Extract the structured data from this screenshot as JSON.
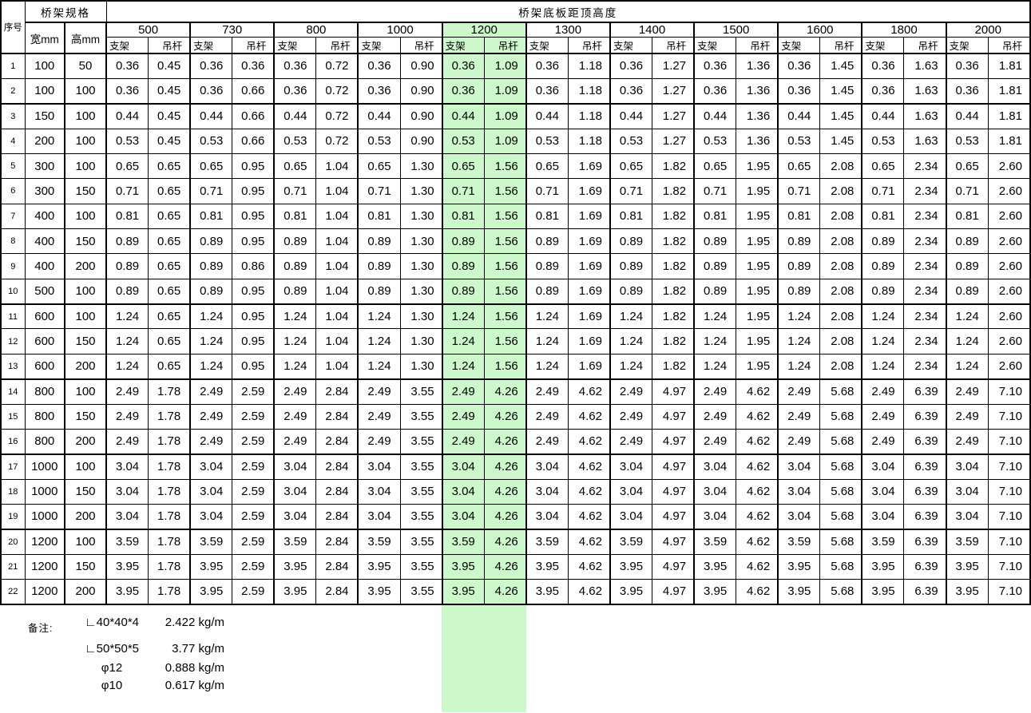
{
  "table": {
    "corner_header": "序号",
    "spec_header": "桥架规格",
    "width_header": "宽mm",
    "height_header": "高mm",
    "top_header": "桥架底板距顶高度",
    "group_labels": [
      "500",
      "730",
      "800",
      "1000",
      "1200",
      "1300",
      "1400",
      "1500",
      "1600",
      "1800",
      "2000"
    ],
    "sub_headers": {
      "bracket": "支架",
      "hanger": "吊杆"
    },
    "highlighted_group": "1200",
    "highlight_color": "#ccf8cc",
    "thick_after_rows": [
      2,
      10,
      13,
      16,
      19
    ],
    "rows": [
      {
        "no": "1",
        "w": "100",
        "h": "50",
        "v": [
          "0.36",
          "0.45",
          "0.36",
          "0.36",
          "0.36",
          "0.72",
          "0.36",
          "0.90",
          "0.36",
          "1.09",
          "0.36",
          "1.18",
          "0.36",
          "1.27",
          "0.36",
          "1.36",
          "0.36",
          "1.45",
          "0.36",
          "1.63",
          "0.36",
          "1.81"
        ]
      },
      {
        "no": "2",
        "w": "100",
        "h": "100",
        "v": [
          "0.36",
          "0.45",
          "0.36",
          "0.66",
          "0.36",
          "0.72",
          "0.36",
          "0.90",
          "0.36",
          "1.09",
          "0.36",
          "1.18",
          "0.36",
          "1.27",
          "0.36",
          "1.36",
          "0.36",
          "1.45",
          "0.36",
          "1.63",
          "0.36",
          "1.81"
        ]
      },
      {
        "no": "3",
        "w": "150",
        "h": "100",
        "v": [
          "0.44",
          "0.45",
          "0.44",
          "0.66",
          "0.44",
          "0.72",
          "0.44",
          "0.90",
          "0.44",
          "1.09",
          "0.44",
          "1.18",
          "0.44",
          "1.27",
          "0.44",
          "1.36",
          "0.44",
          "1.45",
          "0.44",
          "1.63",
          "0.44",
          "1.81"
        ]
      },
      {
        "no": "4",
        "w": "200",
        "h": "100",
        "v": [
          "0.53",
          "0.45",
          "0.53",
          "0.66",
          "0.53",
          "0.72",
          "0.53",
          "0.90",
          "0.53",
          "1.09",
          "0.53",
          "1.18",
          "0.53",
          "1.27",
          "0.53",
          "1.36",
          "0.53",
          "1.45",
          "0.53",
          "1.63",
          "0.53",
          "1.81"
        ]
      },
      {
        "no": "5",
        "w": "300",
        "h": "100",
        "v": [
          "0.65",
          "0.65",
          "0.65",
          "0.95",
          "0.65",
          "1.04",
          "0.65",
          "1.30",
          "0.65",
          "1.56",
          "0.65",
          "1.69",
          "0.65",
          "1.82",
          "0.65",
          "1.95",
          "0.65",
          "2.08",
          "0.65",
          "2.34",
          "0.65",
          "2.60"
        ]
      },
      {
        "no": "6",
        "w": "300",
        "h": "150",
        "v": [
          "0.71",
          "0.65",
          "0.71",
          "0.95",
          "0.71",
          "1.04",
          "0.71",
          "1.30",
          "0.71",
          "1.56",
          "0.71",
          "1.69",
          "0.71",
          "1.82",
          "0.71",
          "1.95",
          "0.71",
          "2.08",
          "0.71",
          "2.34",
          "0.71",
          "2.60"
        ]
      },
      {
        "no": "7",
        "w": "400",
        "h": "100",
        "v": [
          "0.81",
          "0.65",
          "0.81",
          "0.95",
          "0.81",
          "1.04",
          "0.81",
          "1.30",
          "0.81",
          "1.56",
          "0.81",
          "1.69",
          "0.81",
          "1.82",
          "0.81",
          "1.95",
          "0.81",
          "2.08",
          "0.81",
          "2.34",
          "0.81",
          "2.60"
        ]
      },
      {
        "no": "8",
        "w": "400",
        "h": "150",
        "v": [
          "0.89",
          "0.65",
          "0.89",
          "0.95",
          "0.89",
          "1.04",
          "0.89",
          "1.30",
          "0.89",
          "1.56",
          "0.89",
          "1.69",
          "0.89",
          "1.82",
          "0.89",
          "1.95",
          "0.89",
          "2.08",
          "0.89",
          "2.34",
          "0.89",
          "2.60"
        ]
      },
      {
        "no": "9",
        "w": "400",
        "h": "200",
        "v": [
          "0.89",
          "0.65",
          "0.89",
          "0.86",
          "0.89",
          "1.04",
          "0.89",
          "1.30",
          "0.89",
          "1.56",
          "0.89",
          "1.69",
          "0.89",
          "1.82",
          "0.89",
          "1.95",
          "0.89",
          "2.08",
          "0.89",
          "2.34",
          "0.89",
          "2.60"
        ]
      },
      {
        "no": "10",
        "w": "500",
        "h": "100",
        "v": [
          "0.89",
          "0.65",
          "0.89",
          "0.95",
          "0.89",
          "1.04",
          "0.89",
          "1.30",
          "0.89",
          "1.56",
          "0.89",
          "1.69",
          "0.89",
          "1.82",
          "0.89",
          "1.95",
          "0.89",
          "2.08",
          "0.89",
          "2.34",
          "0.89",
          "2.60"
        ]
      },
      {
        "no": "11",
        "w": "600",
        "h": "100",
        "v": [
          "1.24",
          "0.65",
          "1.24",
          "0.95",
          "1.24",
          "1.04",
          "1.24",
          "1.30",
          "1.24",
          "1.56",
          "1.24",
          "1.69",
          "1.24",
          "1.82",
          "1.24",
          "1.95",
          "1.24",
          "2.08",
          "1.24",
          "2.34",
          "1.24",
          "2.60"
        ]
      },
      {
        "no": "12",
        "w": "600",
        "h": "150",
        "v": [
          "1.24",
          "0.65",
          "1.24",
          "0.95",
          "1.24",
          "1.04",
          "1.24",
          "1.30",
          "1.24",
          "1.56",
          "1.24",
          "1.69",
          "1.24",
          "1.82",
          "1.24",
          "1.95",
          "1.24",
          "2.08",
          "1.24",
          "2.34",
          "1.24",
          "2.60"
        ]
      },
      {
        "no": "13",
        "w": "600",
        "h": "200",
        "v": [
          "1.24",
          "0.65",
          "1.24",
          "0.95",
          "1.24",
          "1.04",
          "1.24",
          "1.30",
          "1.24",
          "1.56",
          "1.24",
          "1.69",
          "1.24",
          "1.82",
          "1.24",
          "1.95",
          "1.24",
          "2.08",
          "1.24",
          "2.34",
          "1.24",
          "2.60"
        ]
      },
      {
        "no": "14",
        "w": "800",
        "h": "100",
        "v": [
          "2.49",
          "1.78",
          "2.49",
          "2.59",
          "2.49",
          "2.84",
          "2.49",
          "3.55",
          "2.49",
          "4.26",
          "2.49",
          "4.62",
          "2.49",
          "4.97",
          "2.49",
          "4.62",
          "2.49",
          "5.68",
          "2.49",
          "6.39",
          "2.49",
          "7.10"
        ]
      },
      {
        "no": "15",
        "w": "800",
        "h": "150",
        "v": [
          "2.49",
          "1.78",
          "2.49",
          "2.59",
          "2.49",
          "2.84",
          "2.49",
          "3.55",
          "2.49",
          "4.26",
          "2.49",
          "4.62",
          "2.49",
          "4.97",
          "2.49",
          "4.62",
          "2.49",
          "5.68",
          "2.49",
          "6.39",
          "2.49",
          "7.10"
        ]
      },
      {
        "no": "16",
        "w": "800",
        "h": "200",
        "v": [
          "2.49",
          "1.78",
          "2.49",
          "2.59",
          "2.49",
          "2.84",
          "2.49",
          "3.55",
          "2.49",
          "4.26",
          "2.49",
          "4.62",
          "2.49",
          "4.97",
          "2.49",
          "4.62",
          "2.49",
          "5.68",
          "2.49",
          "6.39",
          "2.49",
          "7.10"
        ]
      },
      {
        "no": "17",
        "w": "1000",
        "h": "100",
        "v": [
          "3.04",
          "1.78",
          "3.04",
          "2.59",
          "3.04",
          "2.84",
          "3.04",
          "3.55",
          "3.04",
          "4.26",
          "3.04",
          "4.62",
          "3.04",
          "4.97",
          "3.04",
          "4.62",
          "3.04",
          "5.68",
          "3.04",
          "6.39",
          "3.04",
          "7.10"
        ]
      },
      {
        "no": "18",
        "w": "1000",
        "h": "150",
        "v": [
          "3.04",
          "1.78",
          "3.04",
          "2.59",
          "3.04",
          "2.84",
          "3.04",
          "3.55",
          "3.04",
          "4.26",
          "3.04",
          "4.62",
          "3.04",
          "4.97",
          "3.04",
          "4.62",
          "3.04",
          "5.68",
          "3.04",
          "6.39",
          "3.04",
          "7.10"
        ]
      },
      {
        "no": "19",
        "w": "1000",
        "h": "200",
        "v": [
          "3.04",
          "1.78",
          "3.04",
          "2.59",
          "3.04",
          "2.84",
          "3.04",
          "3.55",
          "3.04",
          "4.26",
          "3.04",
          "4.62",
          "3.04",
          "4.97",
          "3.04",
          "4.62",
          "3.04",
          "5.68",
          "3.04",
          "6.39",
          "3.04",
          "7.10"
        ]
      },
      {
        "no": "20",
        "w": "1200",
        "h": "100",
        "v": [
          "3.59",
          "1.78",
          "3.59",
          "2.59",
          "3.59",
          "2.84",
          "3.59",
          "3.55",
          "3.59",
          "4.26",
          "3.59",
          "4.62",
          "3.59",
          "4.97",
          "3.59",
          "4.62",
          "3.59",
          "5.68",
          "3.59",
          "6.39",
          "3.59",
          "7.10"
        ]
      },
      {
        "no": "21",
        "w": "1200",
        "h": "150",
        "v": [
          "3.95",
          "1.78",
          "3.95",
          "2.59",
          "3.95",
          "2.84",
          "3.95",
          "3.55",
          "3.95",
          "4.26",
          "3.95",
          "4.62",
          "3.95",
          "4.97",
          "3.95",
          "4.62",
          "3.95",
          "5.68",
          "3.95",
          "6.39",
          "3.95",
          "7.10"
        ]
      },
      {
        "no": "22",
        "w": "1200",
        "h": "200",
        "v": [
          "3.95",
          "1.78",
          "3.95",
          "2.59",
          "3.95",
          "2.84",
          "3.95",
          "3.55",
          "3.95",
          "4.26",
          "3.95",
          "4.62",
          "3.95",
          "4.97",
          "3.95",
          "4.62",
          "3.95",
          "5.68",
          "3.95",
          "6.39",
          "3.95",
          "7.10"
        ]
      }
    ]
  },
  "notes": {
    "label": "备注:",
    "items": [
      {
        "spec": "∟40*40*4",
        "value": "2.422 kg/m"
      },
      {
        "spec": "∟50*50*5",
        "value": "3.77 kg/m"
      },
      {
        "spec": "φ12",
        "value": "0.888 kg/m"
      },
      {
        "spec": "φ10",
        "value": "0.617 kg/m"
      }
    ]
  }
}
